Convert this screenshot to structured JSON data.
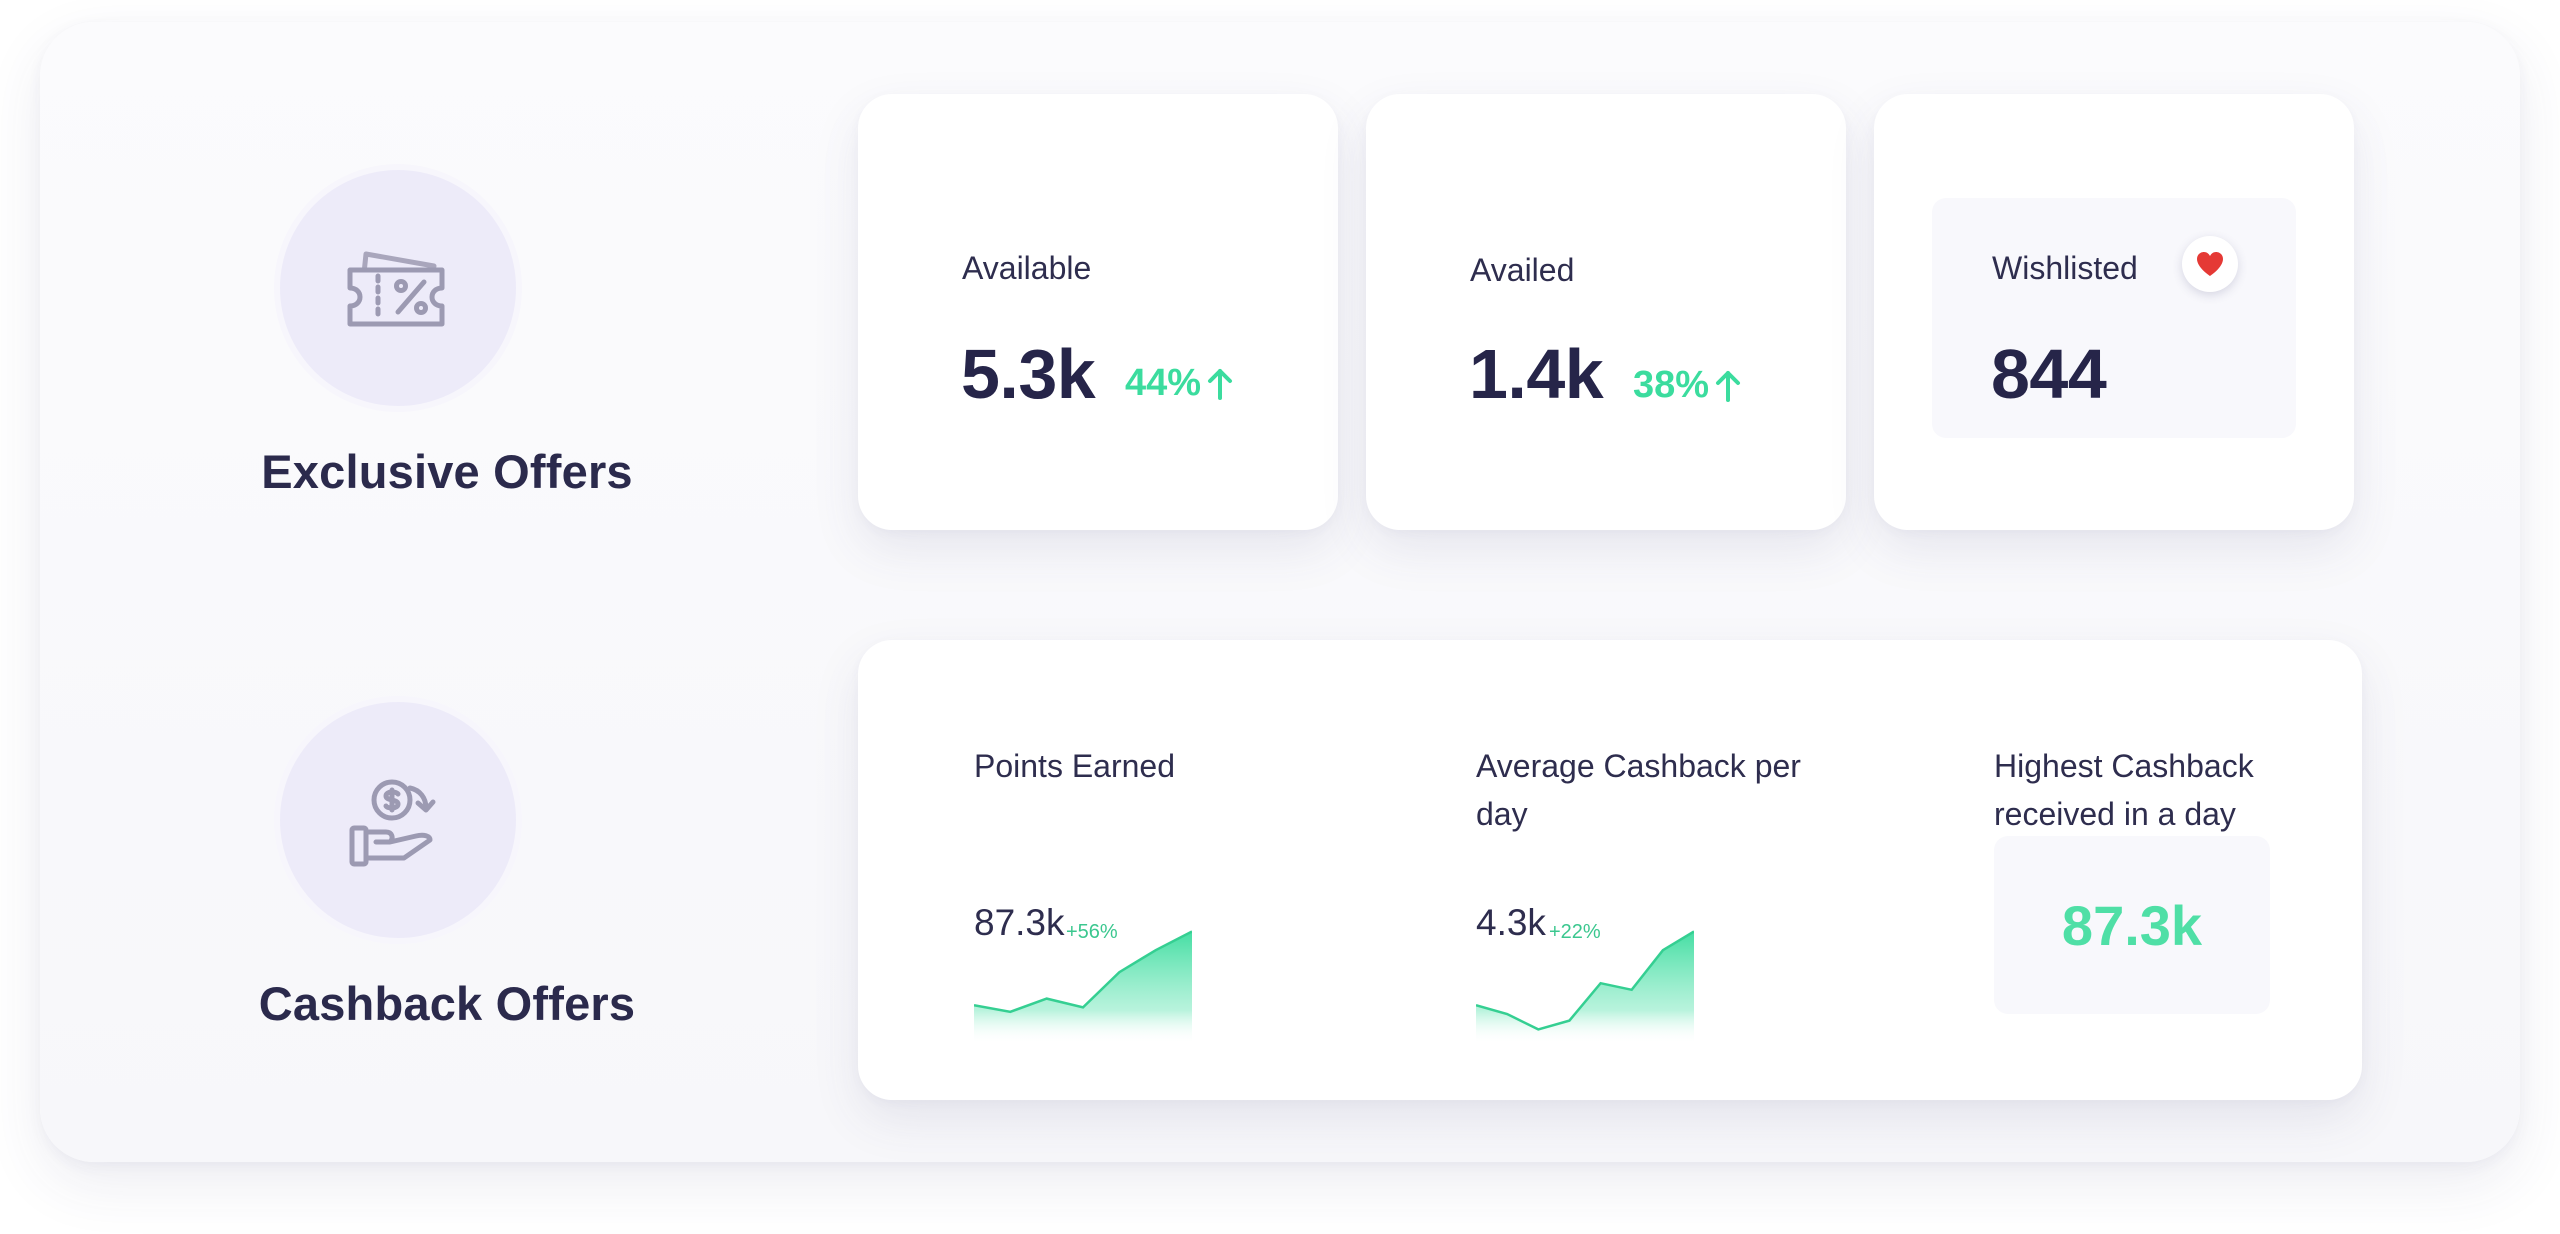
{
  "colors": {
    "accent_green": "#3bdc9e",
    "heart_red": "#e53935",
    "icon_circle_bg": "#edebf9",
    "text_dark": "#262549"
  },
  "exclusive_offers": {
    "title": "Exclusive Offers",
    "icon": "discount-ticket-icon",
    "stats": {
      "available": {
        "label": "Available",
        "value": "5.3k",
        "change": "44%",
        "trend_icon": "arrow-up-icon"
      },
      "availed": {
        "label": "Availed",
        "value": "1.4k",
        "change": "38%",
        "trend_icon": "arrow-up-icon"
      },
      "wishlisted": {
        "label": "Wishlisted",
        "value": "844",
        "badge_icon": "heart-icon"
      }
    }
  },
  "cashback_offers": {
    "title": "Cashback Offers",
    "icon": "hand-coin-icon",
    "metrics": {
      "points_earned": {
        "label": "Points Earned",
        "value": "87.3k",
        "change": "+56%",
        "trend": [
          0.28,
          0.22,
          0.34,
          0.26,
          0.58,
          0.78,
          0.95
        ]
      },
      "avg_cashback": {
        "label": "Average Cashback per day",
        "value": "4.3k",
        "change": "+22%",
        "trend": [
          0.28,
          0.2,
          0.06,
          0.14,
          0.48,
          0.42,
          0.78,
          0.95
        ]
      },
      "highest_cashback": {
        "label": "Highest Cashback received in a day",
        "value": "87.3k"
      }
    }
  }
}
